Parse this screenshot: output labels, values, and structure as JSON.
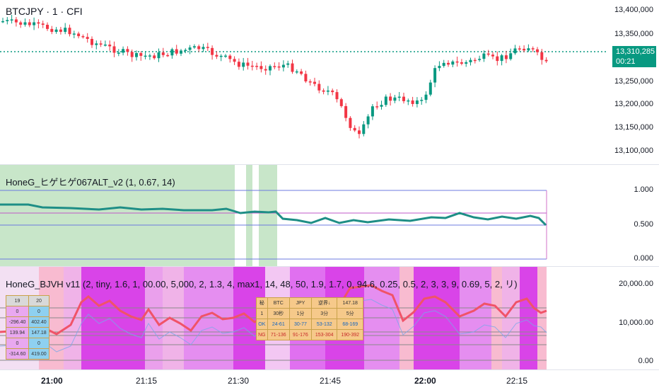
{
  "chart": {
    "symbol": "BTCJPY · 1 · CFI",
    "price_axis": [
      "13,400,000",
      "13,350,000",
      "13,250,000",
      "13,200,000",
      "13,150,000",
      "13,100,000"
    ],
    "current_price": "13,310,285",
    "countdown": "00:21",
    "time_axis": [
      "21:00",
      "21:15",
      "21:30",
      "21:45",
      "22:00",
      "22:15"
    ]
  },
  "indicator1": {
    "title": "HoneG_ヒゲヒゲ067ALT_v2 (1, 0.67, 14)",
    "axis": [
      "1.000",
      "0.500",
      "0.000"
    ]
  },
  "indicator2": {
    "title": "HoneG_BJVH v11 (2, tiny, 1.6, 1, 00.00, 5,000, 2, 1.3, 4, max1, 14, 48, 50, 1.9, 1.7, 0, 94.6, 0.25, 0.5, 2, 3, 3, 9, 0.69, 5, 2, リ)",
    "axis": [
      "20,000.00",
      "10,000.00",
      "0.00"
    ],
    "left_table": [
      [
        "19",
        "20"
      ],
      [
        "0",
        "0"
      ],
      [
        "-296.40",
        "402.40"
      ],
      [
        "139.94",
        "147.18"
      ],
      [
        "0",
        "0"
      ],
      [
        "-314.60",
        "419.00"
      ]
    ],
    "center_table": [
      [
        "秘",
        "BTC",
        "JPY",
        "逆界↓",
        "147.18"
      ],
      [
        "1",
        "30秒",
        "1分",
        "3分",
        "5分"
      ],
      [
        "OK",
        "24-61",
        "30-77",
        "53-132",
        "68-169"
      ],
      [
        "NG",
        "71-136",
        "91-176",
        "153-304",
        "190-392"
      ]
    ]
  },
  "colors": {
    "up": "#089981",
    "down": "#f23645",
    "price_tag": "#089981",
    "indicator_line": "#1e8e86",
    "green_zone": "#c8e6c9",
    "magenta": "#e040fb",
    "pink": "#f8bbd0"
  }
}
